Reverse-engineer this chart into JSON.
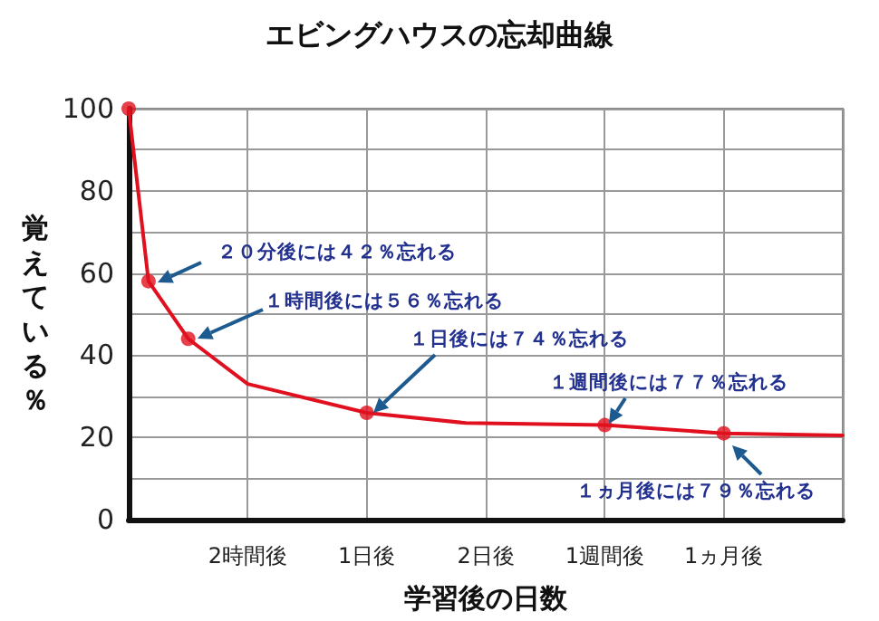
{
  "chart_data": {
    "type": "line",
    "title": "エビングハウスの忘却曲線",
    "xlabel": "学習後の日数",
    "ylabel": "覚えている％",
    "categories": [
      null,
      null,
      null,
      null,
      null,
      null,
      "2時間後",
      null,
      null,
      null,
      null,
      null,
      "1日後",
      null,
      null,
      null,
      null,
      null,
      "2日後",
      null,
      null,
      null,
      null,
      null,
      "1週間後",
      null,
      null,
      null,
      null,
      null,
      "1ヵ月後",
      null,
      null,
      null,
      null,
      null,
      null
    ],
    "series": [
      {
        "color": "#e0101e",
        "marker": "none",
        "values": [
          100,
          58,
          51,
          44,
          null,
          null,
          33,
          null,
          null,
          null,
          null,
          null,
          26,
          null,
          null,
          null,
          null,
          23.5,
          null,
          null,
          null,
          null,
          null,
          null,
          23,
          null,
          null,
          null,
          null,
          null,
          21,
          null,
          null,
          null,
          null,
          null,
          20.5
        ]
      },
      {
        "type": "scatter",
        "color": "#e0101e",
        "marker": "circle",
        "values": [
          100,
          58,
          null,
          44,
          null,
          null,
          null,
          null,
          null,
          null,
          null,
          null,
          26,
          null,
          null,
          null,
          null,
          null,
          null,
          null,
          null,
          null,
          null,
          null,
          23,
          null,
          null,
          null,
          null,
          null,
          21,
          null,
          null,
          null,
          null,
          null,
          null
        ]
      }
    ],
    "ylim": [
      0,
      100
    ],
    "yticks": [
      0,
      {
        "value": 10,
        "label": null
      },
      20,
      {
        "value": 30,
        "label": null
      },
      40,
      {
        "value": 50,
        "label": null
      },
      60,
      {
        "value": 70,
        "label": null
      },
      80,
      {
        "value": 90,
        "label": null
      },
      100
    ],
    "grid": true,
    "annotations": [
      "２０分後には４２％忘れる",
      "１時間後には５６％忘れる",
      "１日後には７４％忘れる",
      "１週間後には７７％忘れる",
      "１ヵ月後には７９％忘れる"
    ]
  }
}
